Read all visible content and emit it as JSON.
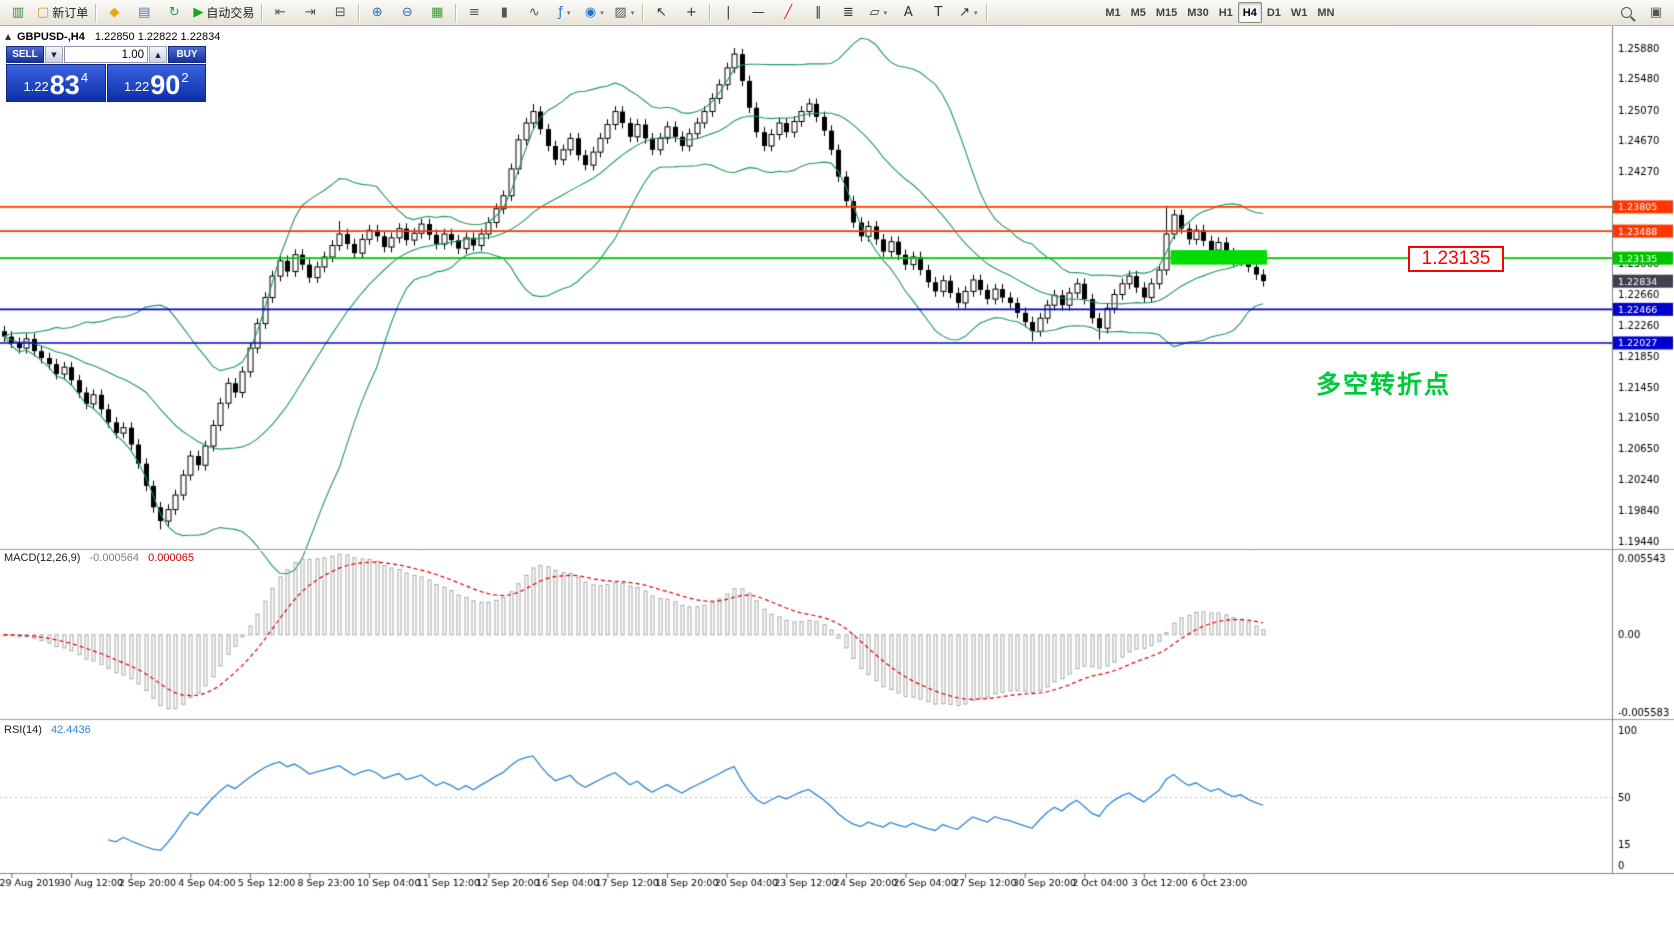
{
  "toolbar": {
    "items": [
      {
        "type": "button",
        "name": "charts-window-button",
        "glyph": "▥",
        "color": "#3c8a3c"
      },
      {
        "type": "button",
        "name": "new-order-button",
        "glyph": "▢",
        "color": "#c89632",
        "label": "新订单"
      },
      {
        "type": "sep"
      },
      {
        "type": "button",
        "name": "favorites-button",
        "glyph": "◆",
        "color": "#e6a817"
      },
      {
        "type": "button",
        "name": "print-button",
        "glyph": "▤",
        "color": "#4a78c8"
      },
      {
        "type": "button",
        "name": "refresh-button",
        "glyph": "↻",
        "color": "#2f9e4f"
      },
      {
        "type": "button",
        "name": "autotrading-button",
        "glyph": "▶",
        "color": "#18a81a",
        "label": "自动交易"
      },
      {
        "type": "sep"
      },
      {
        "type": "button",
        "name": "chart-shift-button",
        "glyph": "⇤",
        "color": "#555555"
      },
      {
        "type": "button",
        "name": "chart-autoscroll-button",
        "glyph": "⇥",
        "color": "#555555"
      },
      {
        "type": "button",
        "name": "chart-grid-button",
        "glyph": "⊟",
        "color": "#555555"
      },
      {
        "type": "sep"
      },
      {
        "type": "button",
        "name": "zoom-in-button",
        "glyph": "⊕",
        "color": "#2a6fbf"
      },
      {
        "type": "button",
        "name": "zoom-out-button",
        "glyph": "⊖",
        "color": "#2a6fbf"
      },
      {
        "type": "button",
        "name": "tile-windows-button",
        "glyph": "▦",
        "color": "#3a9a3a"
      },
      {
        "type": "sep"
      },
      {
        "type": "button",
        "name": "bar-chart-button",
        "glyph": "≡",
        "color": "#555555"
      },
      {
        "type": "button",
        "name": "candlestick-chart-button",
        "glyph": "▮",
        "color": "#555555"
      },
      {
        "type": "button",
        "name": "line-chart-button",
        "glyph": "∿",
        "color": "#555555"
      },
      {
        "type": "button",
        "name": "indicators-button",
        "glyph": "ƒ",
        "color": "#2a6fbf",
        "dropdown": true
      },
      {
        "type": "button",
        "name": "navigator-button",
        "glyph": "◉",
        "color": "#2a6fbf",
        "dropdown": true
      },
      {
        "type": "button",
        "name": "templates-button",
        "glyph": "▨",
        "color": "#555555",
        "dropdown": true
      },
      {
        "type": "sep"
      },
      {
        "type": "button",
        "name": "cursor-button",
        "glyph": "↖",
        "color": "#333333"
      },
      {
        "type": "button",
        "name": "crosshair-button",
        "glyph": "+",
        "color": "#333333"
      },
      {
        "type": "sep"
      },
      {
        "type": "button",
        "name": "vertical-line-button",
        "glyph": "|",
        "color": "#333333"
      },
      {
        "type": "button",
        "name": "horizontal-line-button",
        "glyph": "—",
        "color": "#333333"
      },
      {
        "type": "button",
        "name": "trendline-button",
        "glyph": "╱",
        "color": "#c03030"
      },
      {
        "type": "button",
        "name": "channel-button",
        "glyph": "∥",
        "color": "#333333"
      },
      {
        "type": "button",
        "name": "fibonacci-button",
        "glyph": "≣",
        "color": "#333333"
      },
      {
        "type": "button",
        "name": "shapes-button",
        "glyph": "▱",
        "color": "#333333",
        "dropdown": true
      },
      {
        "type": "button",
        "name": "text-button",
        "glyph": "A",
        "color": "#333333"
      },
      {
        "type": "button",
        "name": "text-label-button",
        "glyph": "T",
        "color": "#333333"
      },
      {
        "type": "button",
        "name": "arrows-button",
        "glyph": "↗",
        "color": "#333333",
        "dropdown": true
      },
      {
        "type": "sep"
      },
      {
        "type": "gap"
      },
      {
        "type": "tf",
        "label": "M1"
      },
      {
        "type": "tf",
        "label": "M5"
      },
      {
        "type": "tf",
        "label": "M15"
      },
      {
        "type": "tf",
        "label": "M30"
      },
      {
        "type": "tf",
        "label": "H1"
      },
      {
        "type": "tf",
        "label": "H4",
        "active": true
      },
      {
        "type": "tf",
        "label": "D1"
      },
      {
        "type": "tf",
        "label": "W1"
      },
      {
        "type": "tf",
        "label": "MN"
      },
      {
        "type": "spacer"
      },
      {
        "type": "button",
        "name": "search-button",
        "icon": "magnifier"
      },
      {
        "type": "button",
        "name": "data-window-button",
        "glyph": "▣",
        "color": "#555555"
      }
    ]
  },
  "chart": {
    "collapse_glyph": "▲",
    "header": {
      "symbol": "GBPUSD-,H4",
      "values": "1.22850 1.22822 1.22834"
    },
    "trade_panel": {
      "sell_label": "SELL",
      "buy_label": "BUY",
      "volume": "1.00",
      "price_prefix": "1.22",
      "sell_big": "83",
      "sell_sup": "4",
      "buy_big": "90",
      "buy_sup": "2",
      "down_glyph": "▼",
      "up_glyph": "▲"
    },
    "callout": "1.23135",
    "annotation": "多空转折点"
  },
  "indicators": {
    "macd": {
      "name": "MACD(12,26,9)",
      "value1": "-0.000564",
      "value2": "0.000065",
      "axis": [
        "0.005543",
        "0.00",
        "-0.005583"
      ]
    },
    "rsi": {
      "name": "RSI(14)",
      "value": "42.4436",
      "axis": [
        "100",
        "50",
        "15",
        "0"
      ]
    }
  },
  "chart_data": {
    "type": "candlestick",
    "symbol": "GBPUSD",
    "timeframe": "H4",
    "price_range": {
      "top": 1.2588,
      "bottom": 1.1944
    },
    "price_axis_labels": [
      "1.25880",
      "1.25480",
      "1.25070",
      "1.24670",
      "1.24270",
      "1.23060",
      "1.22660",
      "1.22260",
      "1.21850",
      "1.21450",
      "1.21050",
      "1.20650",
      "1.20240",
      "1.19840",
      "1.19440"
    ],
    "time_labels": [
      "29 Aug 2019",
      "30 Aug 12:00",
      "2 Sep 20:00",
      "4 Sep 04:00",
      "5 Sep 12:00",
      "8 Sep 23:00",
      "10 Sep 04:00",
      "11 Sep 12:00",
      "12 Sep 20:00",
      "16 Sep 04:00",
      "17 Sep 12:00",
      "18 Sep 20:00",
      "20 Sep 04:00",
      "23 Sep 12:00",
      "24 Sep 20:00",
      "26 Sep 04:00",
      "27 Sep 12:00",
      "30 Sep 20:00",
      "2 Oct 04:00",
      "3 Oct 12:00",
      "6 Oct 23:00"
    ],
    "time_label_start_index": 1,
    "time_label_step": 8,
    "first_open": 1.2218,
    "closes": [
      1.2211,
      1.2203,
      1.2196,
      1.2208,
      1.2192,
      1.2183,
      1.2175,
      1.2162,
      1.2171,
      1.2154,
      1.2138,
      1.2123,
      1.2135,
      1.2116,
      1.2099,
      1.2085,
      1.2092,
      1.207,
      1.2045,
      1.2016,
      1.1988,
      1.197,
      1.1985,
      1.2004,
      1.203,
      1.2055,
      1.2043,
      1.2068,
      1.2095,
      1.2124,
      1.215,
      1.2138,
      1.2165,
      1.2196,
      1.2228,
      1.2262,
      1.229,
      1.231,
      1.2296,
      1.2318,
      1.2305,
      1.2288,
      1.2302,
      1.2315,
      1.233,
      1.2345,
      1.2332,
      1.232,
      1.2338,
      1.235,
      1.2342,
      1.2328,
      1.234,
      1.2352,
      1.2337,
      1.2346,
      1.2358,
      1.2344,
      1.2332,
      1.2345,
      1.2337,
      1.2326,
      1.234,
      1.233,
      1.2345,
      1.236,
      1.2378,
      1.2395,
      1.243,
      1.2468,
      1.249,
      1.2505,
      1.2482,
      1.246,
      1.2442,
      1.2455,
      1.247,
      1.2448,
      1.2435,
      1.2452,
      1.247,
      1.2488,
      1.2505,
      1.249,
      1.2472,
      1.2488,
      1.247,
      1.2455,
      1.247,
      1.2485,
      1.2472,
      1.246,
      1.2476,
      1.249,
      1.2505,
      1.2522,
      1.254,
      1.2562,
      1.258,
      1.2545,
      1.251,
      1.2478,
      1.246,
      1.2475,
      1.249,
      1.2478,
      1.2492,
      1.2505,
      1.2515,
      1.2498,
      1.248,
      1.2455,
      1.242,
      1.2388,
      1.236,
      1.2342,
      1.2355,
      1.2338,
      1.2322,
      1.2335,
      1.2318,
      1.2305,
      1.2315,
      1.2298,
      1.2282,
      1.227,
      1.2284,
      1.2268,
      1.2255,
      1.227,
      1.2285,
      1.2272,
      1.226,
      1.2273,
      1.2262,
      1.2255,
      1.2242,
      1.223,
      1.2218,
      1.2235,
      1.2252,
      1.2265,
      1.2252,
      1.2268,
      1.228,
      1.226,
      1.2235,
      1.2222,
      1.2248,
      1.2266,
      1.228,
      1.229,
      1.2275,
      1.2262,
      1.228,
      1.2298,
      1.2345,
      1.237,
      1.2352,
      1.2338,
      1.235,
      1.2336,
      1.2324,
      1.2334,
      1.232,
      1.231,
      1.2316,
      1.2302,
      1.2292,
      1.22834
    ],
    "wick_overrides": {
      "21": {
        "low": 1.1959
      },
      "45": {
        "high": 1.2362
      },
      "71": {
        "high": 1.2515
      },
      "98": {
        "high": 1.2588
      },
      "138": {
        "low": 1.2205
      },
      "147": {
        "low": 1.2207
      },
      "156": {
        "high": 1.2382
      }
    },
    "bollinger": {
      "period": 20,
      "deviation": 2,
      "color": "#22985c"
    },
    "macd_params": {
      "fast": 12,
      "slow": 26,
      "signal": 9
    },
    "rsi_params": {
      "period": 14
    },
    "hlines": [
      {
        "price": 1.23805,
        "color": "#ff3600",
        "label": "1.23805"
      },
      {
        "price": 1.23488,
        "color": "#ff3600",
        "label": "1.23488"
      },
      {
        "price": 1.23135,
        "color": "#00c400",
        "label": "1.23135"
      },
      {
        "price": 1.22466,
        "color": "#0000cd",
        "label": "1.22466"
      },
      {
        "price": 1.22027,
        "color": "#0000cd",
        "label": "1.22027"
      }
    ],
    "current_price": 1.22834,
    "current_price_label": "1.22834",
    "highlight_rect": {
      "from_index": 157,
      "to_index": 169,
      "price_top": 1.2324,
      "price_bottom": 1.2305,
      "color": "#00dc00"
    }
  }
}
